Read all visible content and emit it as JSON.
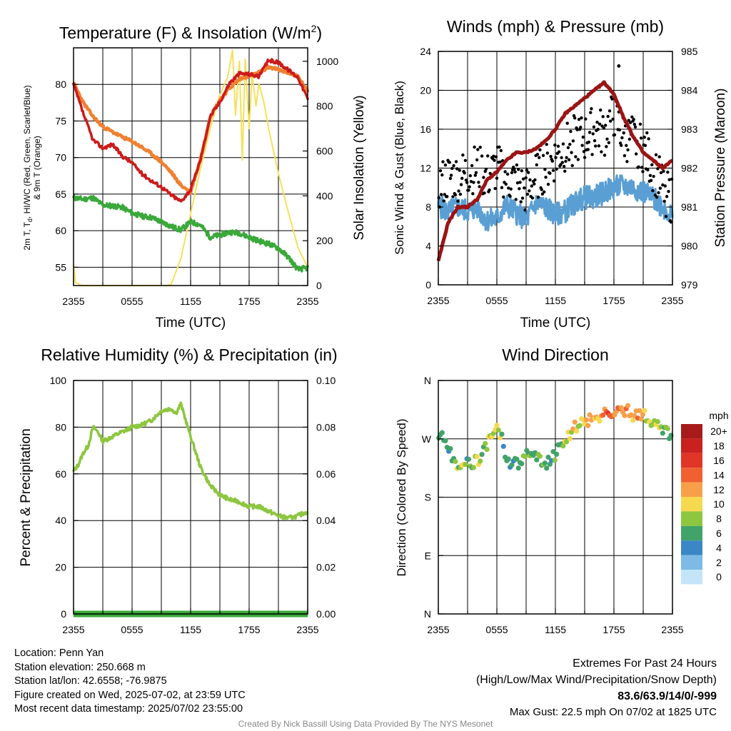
{
  "colors": {
    "temp": "#cc1a1a",
    "temp9m": "#f08030",
    "dewpoint": "#3aa83a",
    "solar": "#f7e05a",
    "wind": "#5a9fd4",
    "gust": "#000000",
    "pressure": "#9b1414",
    "rh": "#8dc63f",
    "precip": "#3aa83a",
    "extremes": "#cc1a1a"
  },
  "chart_data": [
    {
      "id": "temp",
      "type": "line",
      "title": "Temperature (F) & Insolation (W/m",
      "title_sup": "2",
      "title_end": ")",
      "xlabel": "Time (UTC)",
      "ylabel_line1": "2m T, T",
      "ylabel_sub": "d",
      "ylabel_line1_rest": ", HI/WC (Red, Green, Scarlet/Blue)",
      "ylabel_line2": "& 9m T (Orange)",
      "ylabel_right": "Solar Insolation (Yellow)",
      "xticks": [
        "2355",
        "0555",
        "1155",
        "1755",
        "2355"
      ],
      "xlim": [
        0,
        24
      ],
      "ylim": [
        52.5,
        85
      ],
      "yticks": [
        55,
        60,
        65,
        70,
        75,
        80
      ],
      "y2lim": [
        0,
        1060
      ],
      "y2ticks": [
        0,
        200,
        400,
        600,
        800,
        1000
      ],
      "grid": true,
      "series": [
        {
          "key": "temp9m",
          "x": [
            0,
            1,
            2,
            3,
            4,
            5,
            6,
            7,
            8,
            9,
            10,
            11,
            12,
            13,
            14,
            15,
            16,
            17,
            18,
            19,
            20,
            21,
            22,
            23,
            24
          ],
          "values": [
            80.2,
            77.5,
            75.6,
            74.2,
            73.5,
            72.8,
            72.2,
            71.4,
            70.5,
            69.4,
            68.0,
            66.2,
            65.3,
            69.7,
            75.6,
            77.9,
            79.5,
            80.7,
            81.2,
            81.6,
            82.4,
            82.0,
            81.6,
            81.1,
            79.0
          ]
        },
        {
          "key": "temp",
          "x": [
            0,
            1,
            2,
            3,
            4,
            5,
            6,
            7,
            8,
            9,
            10,
            11,
            12,
            13,
            14,
            15,
            16,
            17,
            18,
            19,
            20,
            21,
            22,
            23,
            24
          ],
          "values": [
            80.0,
            76.0,
            72.4,
            71.3,
            71.8,
            70.2,
            69.3,
            67.8,
            66.8,
            66.0,
            64.9,
            64.0,
            65.6,
            69.6,
            75.6,
            77.6,
            80.2,
            81.5,
            81.4,
            81.1,
            83.3,
            83.0,
            82.0,
            81.0,
            78.0
          ]
        },
        {
          "key": "dewpoint",
          "x": [
            0,
            1,
            2,
            3,
            4,
            5,
            6,
            7,
            8,
            9,
            10,
            11,
            12,
            13,
            14,
            15,
            16,
            17,
            18,
            19,
            20,
            21,
            22,
            23,
            24
          ],
          "values": [
            64.5,
            64.3,
            64.5,
            63.5,
            63.4,
            63.2,
            62.4,
            62.0,
            61.8,
            61.2,
            60.6,
            60.1,
            61.2,
            60.8,
            59.1,
            59.4,
            59.8,
            59.7,
            59.1,
            58.6,
            58.2,
            57.6,
            56.4,
            54.7,
            54.9
          ]
        },
        {
          "key": "solar",
          "axis": "right",
          "x": [
            0,
            0.2,
            0.8,
            1.5,
            3,
            5,
            7,
            9,
            9.5,
            10,
            11,
            12,
            13,
            14,
            15,
            15.8,
            16.3,
            16.6,
            17,
            17.3,
            17.6,
            18,
            18.3,
            18.7,
            19,
            19.5,
            20,
            20.5,
            21,
            22,
            23,
            24
          ],
          "values": [
            95,
            15,
            0,
            0,
            0,
            0,
            0,
            0,
            0,
            5,
            120,
            320,
            520,
            700,
            850,
            930,
            1050,
            760,
            1000,
            560,
            1010,
            700,
            950,
            800,
            900,
            820,
            700,
            600,
            500,
            330,
            170,
            80
          ]
        }
      ]
    },
    {
      "id": "wind",
      "type": "line",
      "title": "Winds (mph) & Pressure (mb)",
      "xlabel": "Time (UTC)",
      "ylabel": "Sonic Wind & Gust (Blue, Black)",
      "ylabel_right": "Station Pressure (Maroon)",
      "xticks": [
        "2355",
        "0555",
        "1155",
        "1755",
        "2355"
      ],
      "xlim": [
        0,
        24
      ],
      "ylim": [
        0,
        24
      ],
      "yticks": [
        0,
        4,
        8,
        12,
        16,
        20,
        24
      ],
      "y2lim": [
        979,
        985
      ],
      "y2ticks": [
        979,
        980,
        981,
        982,
        983,
        984,
        985
      ],
      "grid": true,
      "series": [
        {
          "key": "wind",
          "name": "Sonic Wind",
          "x": [
            0,
            1,
            2,
            3,
            4,
            5,
            6,
            7,
            8,
            9,
            10,
            11,
            12,
            13,
            14,
            15,
            16,
            17,
            18,
            19,
            20,
            21,
            22,
            23,
            24
          ],
          "values": [
            8.2,
            7.5,
            8.0,
            7.6,
            7.9,
            6.6,
            6.8,
            8.2,
            7.4,
            6.6,
            8.4,
            8.0,
            7.2,
            7.6,
            8.4,
            9.0,
            9.0,
            9.5,
            10.0,
            10.2,
            10.0,
            9.6,
            8.9,
            8.1,
            7.0
          ]
        },
        {
          "key": "gust",
          "name": "Gust",
          "x": [
            0,
            1,
            2,
            3,
            4,
            5,
            6,
            7,
            8,
            9,
            10,
            11,
            12,
            13,
            14,
            15,
            16,
            17,
            18,
            19,
            20,
            21,
            22,
            23,
            24
          ],
          "values": [
            10.0,
            11.0,
            11.0,
            11.5,
            12.0,
            11.0,
            12.0,
            11.0,
            10.5,
            9.5,
            11.0,
            12.0,
            13.0,
            14.0,
            15.0,
            15.0,
            16.0,
            15.5,
            17.5,
            15.0,
            15.0,
            14.0,
            12.0,
            10.0,
            8.5
          ]
        },
        {
          "key": "pressure",
          "name": "Station Pressure",
          "axis": "right",
          "x": [
            0,
            1,
            2,
            3,
            4,
            5,
            6,
            7,
            8,
            9,
            10,
            11,
            12,
            13,
            14,
            15,
            16,
            17,
            18,
            19,
            20,
            21,
            22,
            23,
            24
          ],
          "values": [
            979.6,
            980.6,
            981.0,
            981.0,
            981.2,
            981.7,
            981.9,
            982.2,
            982.4,
            982.4,
            982.5,
            982.7,
            983.0,
            983.4,
            983.6,
            983.8,
            984.0,
            984.2,
            983.9,
            983.3,
            982.8,
            982.4,
            982.2,
            982.0,
            982.2
          ]
        }
      ],
      "max_gust_point": {
        "x": 18.5,
        "y": 22.5
      }
    },
    {
      "id": "rh",
      "type": "line",
      "title": "Relative Humidity (%) & Precipitation (in)",
      "xlabel": "",
      "ylabel": "Percent & Precipitation",
      "xticks": [
        "2355",
        "0555",
        "1155",
        "1755",
        "2355"
      ],
      "xlim": [
        0,
        24
      ],
      "ylim": [
        0,
        100
      ],
      "yticks": [
        0,
        20,
        40,
        60,
        80,
        100
      ],
      "y2lim": [
        0,
        0.1
      ],
      "y2ticks": [
        "0.00",
        "0.02",
        "0.04",
        "0.06",
        "0.08",
        "0.10"
      ],
      "grid": true,
      "series": [
        {
          "key": "rh",
          "name": "Relative Humidity",
          "x": [
            0,
            0.5,
            1,
            1.5,
            2,
            2.5,
            3,
            3.5,
            4,
            5,
            6,
            7,
            8,
            9,
            10,
            10.5,
            11,
            12,
            13,
            14,
            15,
            16,
            17,
            18,
            19,
            20,
            21,
            22,
            23,
            24
          ],
          "values": [
            61,
            64,
            69,
            72,
            80,
            78,
            74,
            75,
            76,
            78,
            80,
            81,
            83,
            87,
            88,
            86,
            90,
            76,
            63,
            55,
            51,
            49,
            48,
            46,
            46,
            44,
            42,
            41,
            42,
            44
          ]
        },
        {
          "key": "precip",
          "name": "Precipitation",
          "x": [
            0,
            24
          ],
          "values": [
            0,
            0
          ]
        }
      ]
    },
    {
      "id": "dir",
      "type": "scatter",
      "title": "Wind Direction",
      "ylabel": "Direction (Colored By Speed)",
      "xticks": [
        "2355",
        "0555",
        "1155",
        "1755",
        "2355"
      ],
      "yticks": [
        "N",
        "E",
        "S",
        "W",
        "N"
      ],
      "xlim": [
        0,
        24
      ],
      "ylim": [
        0,
        360
      ],
      "grid": true,
      "x": [
        0,
        0.5,
        1,
        1.5,
        2,
        2.5,
        3,
        3.5,
        4,
        4.5,
        5,
        5.5,
        6,
        6.5,
        7,
        7.5,
        8,
        8.5,
        9,
        9.5,
        10,
        10.5,
        11,
        11.5,
        12,
        12.5,
        13,
        13.5,
        14,
        14.5,
        15,
        15.5,
        16,
        16.5,
        17,
        17.5,
        18,
        18.5,
        19,
        19.5,
        20,
        20.5,
        21,
        21.5,
        22,
        22.5,
        23,
        23.5,
        24
      ],
      "values": [
        275,
        270,
        262,
        240,
        230,
        228,
        235,
        232,
        236,
        248,
        262,
        280,
        282,
        270,
        240,
        230,
        235,
        232,
        245,
        250,
        240,
        236,
        232,
        238,
        245,
        258,
        270,
        275,
        290,
        292,
        296,
        300,
        303,
        300,
        310,
        308,
        312,
        313,
        310,
        316,
        306,
        303,
        311,
        303,
        297,
        291,
        283,
        278,
        269
      ],
      "speeds": [
        7,
        6,
        5,
        7,
        8,
        9,
        6,
        7,
        10,
        6,
        8,
        9,
        10,
        7,
        4,
        5,
        6,
        7,
        8,
        6,
        7,
        8,
        6,
        5,
        7,
        7,
        9,
        10,
        11,
        9,
        10,
        12,
        11,
        10,
        13,
        15,
        12,
        16,
        11,
        12,
        10,
        13,
        12,
        8,
        9,
        10,
        7,
        8,
        6
      ],
      "colorbar": {
        "title": "mph",
        "labels": [
          "20+",
          "18",
          "16",
          "14",
          "12",
          "10",
          "8",
          "6",
          "4",
          "2",
          "0"
        ],
        "colors": [
          "#a81b1b",
          "#c9211e",
          "#e03527",
          "#f06030",
          "#f7a04a",
          "#f5d94f",
          "#8dc63f",
          "#42a36a",
          "#3a86c7",
          "#7dbbe6",
          "#c3e5f7"
        ]
      }
    }
  ],
  "info": {
    "location": "Location: Penn Yan",
    "elevation": "Station elevation: 250.668 m",
    "latlon": "Station lat/lon: 42.6558; -76.9875",
    "created": "Figure created on Wed, 2025-07-02, at 23:59 UTC",
    "recent": "Most recent data timestamp: 2025/07/02 23:55:00"
  },
  "extremes": {
    "title": "Extremes For Past 24 Hours",
    "subtitle": "(High/Low/Max Wind/Precipitation/Snow Depth)",
    "values": "83.6/63.9/14/0/-999",
    "gust": "Max Gust: 22.5 mph On 07/02 at 1825 UTC"
  },
  "credit": "Created By Nick Bassill Using Data Provided By The NYS Mesonet"
}
